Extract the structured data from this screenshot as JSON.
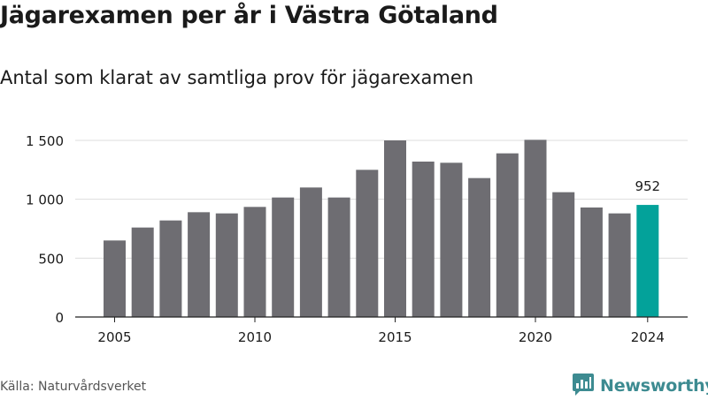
{
  "title": "Jägarexamen per år i Västra Götaland",
  "subtitle": "Antal som klarat av samtliga prov för jägarexamen",
  "source": "Källa: Naturvårdsverket",
  "brand": {
    "name": "Newsworthy",
    "icon": "newsworthy-logo-icon",
    "color": "#3d8b91"
  },
  "colors": {
    "bar": "#6e6d72",
    "highlight": "#03a29a",
    "grid": "#dddddd",
    "axis": "#222222"
  },
  "chart_data": {
    "type": "bar",
    "title": "Jägarexamen per år i Västra Götaland",
    "subtitle": "Antal som klarat av samtliga prov för jägarexamen",
    "x": [
      2005,
      2006,
      2007,
      2008,
      2009,
      2010,
      2011,
      2012,
      2013,
      2014,
      2015,
      2016,
      2017,
      2018,
      2019,
      2020,
      2021,
      2022,
      2023,
      2024
    ],
    "values": [
      650,
      760,
      820,
      890,
      880,
      935,
      1015,
      1100,
      1015,
      1250,
      1500,
      1320,
      1310,
      1180,
      1390,
      1505,
      1060,
      930,
      880,
      952
    ],
    "highlight": {
      "x": 2024,
      "label": "952"
    },
    "x_ticks": [
      "2005",
      "2010",
      "2015",
      "2020",
      "2024"
    ],
    "y_ticks": [
      {
        "value": 0,
        "label": "0"
      },
      {
        "value": 500,
        "label": "500"
      },
      {
        "value": 1000,
        "label": "1 000"
      },
      {
        "value": 1500,
        "label": "1 500"
      }
    ],
    "ylim": [
      0,
      1500
    ],
    "grid": true
  }
}
